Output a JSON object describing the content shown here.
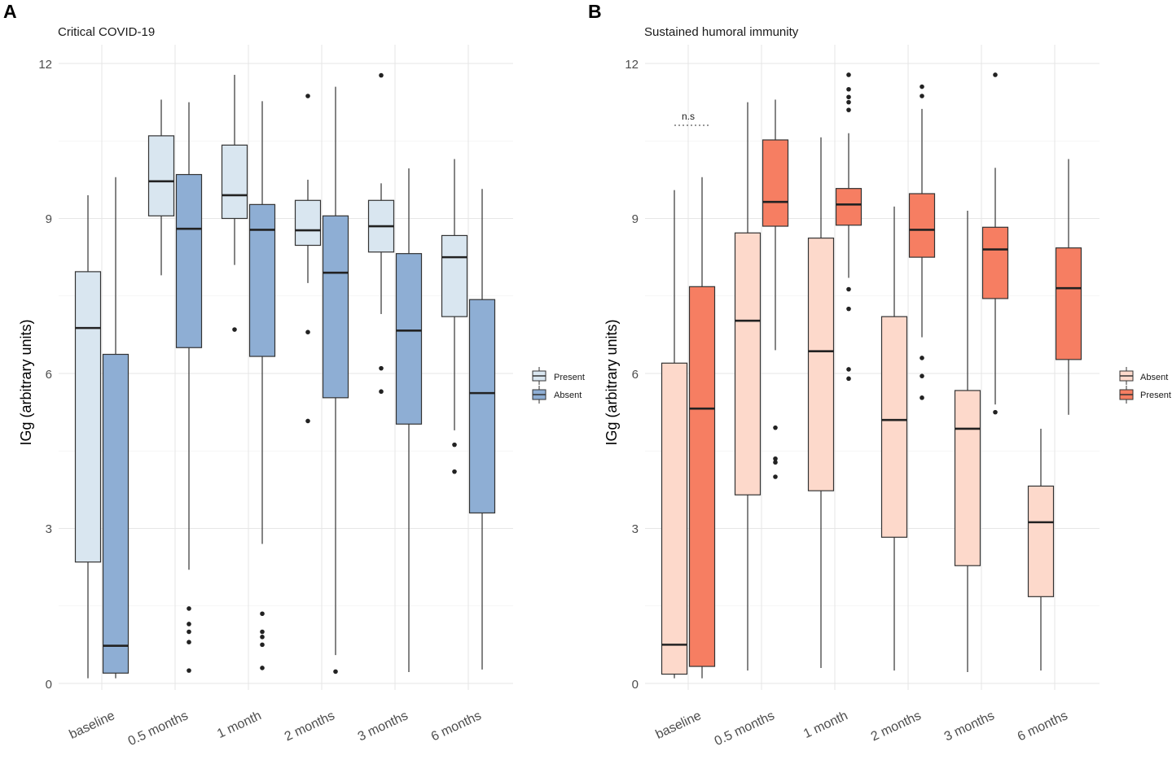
{
  "chart_data": [
    {
      "type": "boxplot",
      "panel_label": "A",
      "title": "Critical COVID-19",
      "xlabel": "",
      "ylabel": "IGg (arbitrary units)",
      "ylim": [
        0,
        12
      ],
      "yticks": [
        0,
        3,
        6,
        9,
        12
      ],
      "categories": [
        "baseline",
        "0.5 months",
        "1 month",
        "2 months",
        "3 months",
        "6 months"
      ],
      "legend": {
        "position": "right",
        "entries": [
          "Present",
          "Absent"
        ]
      },
      "series": [
        {
          "name": "Present",
          "color": "#d9e6f0",
          "boxes": [
            {
              "lower_whisker": 0.1,
              "q1": 2.35,
              "median": 6.88,
              "q3": 7.97,
              "upper_whisker": 9.45,
              "outliers": []
            },
            {
              "lower_whisker": 7.9,
              "q1": 9.05,
              "median": 9.72,
              "q3": 10.6,
              "upper_whisker": 11.3,
              "outliers": []
            },
            {
              "lower_whisker": 8.1,
              "q1": 9.0,
              "median": 9.45,
              "q3": 10.42,
              "upper_whisker": 11.78,
              "outliers": [
                6.85
              ]
            },
            {
              "lower_whisker": 7.75,
              "q1": 8.48,
              "median": 8.77,
              "q3": 9.35,
              "upper_whisker": 9.75,
              "outliers": [
                11.37,
                6.8,
                5.08
              ]
            },
            {
              "lower_whisker": 7.15,
              "q1": 8.35,
              "median": 8.85,
              "q3": 9.35,
              "upper_whisker": 9.68,
              "outliers": [
                11.77,
                6.1,
                5.65
              ]
            },
            {
              "lower_whisker": 4.9,
              "q1": 7.1,
              "median": 8.25,
              "q3": 8.67,
              "upper_whisker": 10.15,
              "outliers": [
                4.62,
                4.1
              ]
            }
          ]
        },
        {
          "name": "Absent",
          "color": "#8eaed4",
          "boxes": [
            {
              "lower_whisker": 0.1,
              "q1": 0.2,
              "median": 0.73,
              "q3": 6.37,
              "upper_whisker": 9.8,
              "outliers": []
            },
            {
              "lower_whisker": 2.2,
              "q1": 6.5,
              "median": 8.8,
              "q3": 9.85,
              "upper_whisker": 11.25,
              "outliers": [
                1.45,
                1.15,
                1.0,
                0.8,
                0.25
              ]
            },
            {
              "lower_whisker": 2.7,
              "q1": 6.33,
              "median": 8.78,
              "q3": 9.27,
              "upper_whisker": 11.27,
              "outliers": [
                1.35,
                1.0,
                0.9,
                0.75,
                0.3
              ]
            },
            {
              "lower_whisker": 0.55,
              "q1": 5.53,
              "median": 7.95,
              "q3": 9.05,
              "upper_whisker": 11.55,
              "outliers": [
                0.23
              ]
            },
            {
              "lower_whisker": 0.22,
              "q1": 5.02,
              "median": 6.83,
              "q3": 8.32,
              "upper_whisker": 9.97,
              "outliers": []
            },
            {
              "lower_whisker": 0.27,
              "q1": 3.3,
              "median": 5.62,
              "q3": 7.43,
              "upper_whisker": 9.57,
              "outliers": []
            }
          ]
        }
      ]
    },
    {
      "type": "boxplot",
      "panel_label": "B",
      "title": "Sustained humoral immunity",
      "xlabel": "",
      "ylabel": "IGg (arbitrary units)",
      "ylim": [
        0,
        12
      ],
      "yticks": [
        0,
        3,
        6,
        9,
        12
      ],
      "categories": [
        "baseline",
        "0.5 months",
        "1 month",
        "2 months",
        "3 months",
        "6 months"
      ],
      "legend": {
        "position": "right",
        "entries": [
          "Absent",
          "Present"
        ]
      },
      "annotations": [
        {
          "text": "n.s",
          "category": "baseline",
          "y": 10.8
        }
      ],
      "series": [
        {
          "name": "Absent",
          "color": "#fdd9cb",
          "boxes": [
            {
              "lower_whisker": 0.1,
              "q1": 0.18,
              "median": 0.75,
              "q3": 6.2,
              "upper_whisker": 9.55,
              "outliers": []
            },
            {
              "lower_whisker": 0.25,
              "q1": 3.65,
              "median": 7.02,
              "q3": 8.72,
              "upper_whisker": 11.25,
              "outliers": []
            },
            {
              "lower_whisker": 0.3,
              "q1": 3.73,
              "median": 6.43,
              "q3": 8.62,
              "upper_whisker": 10.57,
              "outliers": []
            },
            {
              "lower_whisker": 0.25,
              "q1": 2.83,
              "median": 5.1,
              "q3": 7.1,
              "upper_whisker": 9.23,
              "outliers": []
            },
            {
              "lower_whisker": 0.22,
              "q1": 2.28,
              "median": 4.93,
              "q3": 5.67,
              "upper_whisker": 9.15,
              "outliers": []
            },
            {
              "lower_whisker": 0.25,
              "q1": 1.68,
              "median": 3.12,
              "q3": 3.82,
              "upper_whisker": 4.93,
              "outliers": []
            }
          ]
        },
        {
          "name": "Present",
          "color": "#f67e62",
          "boxes": [
            {
              "lower_whisker": 0.1,
              "q1": 0.33,
              "median": 5.32,
              "q3": 7.68,
              "upper_whisker": 9.8,
              "outliers": []
            },
            {
              "lower_whisker": 6.45,
              "q1": 8.85,
              "median": 9.32,
              "q3": 10.52,
              "upper_whisker": 11.3,
              "outliers": [
                4.95,
                4.35,
                4.28,
                4.0
              ]
            },
            {
              "lower_whisker": 7.85,
              "q1": 8.87,
              "median": 9.27,
              "q3": 9.58,
              "upper_whisker": 10.65,
              "outliers": [
                11.78,
                11.5,
                11.35,
                11.25,
                11.1,
                7.63,
                7.25,
                6.08,
                5.9
              ]
            },
            {
              "lower_whisker": 6.7,
              "q1": 8.25,
              "median": 8.78,
              "q3": 9.48,
              "upper_whisker": 11.12,
              "outliers": [
                11.55,
                11.37,
                6.3,
                5.95,
                5.53
              ]
            },
            {
              "lower_whisker": 5.4,
              "q1": 7.45,
              "median": 8.4,
              "q3": 8.83,
              "upper_whisker": 9.98,
              "outliers": [
                11.78,
                5.25
              ]
            },
            {
              "lower_whisker": 5.2,
              "q1": 6.27,
              "median": 7.65,
              "q3": 8.43,
              "upper_whisker": 10.15,
              "outliers": []
            }
          ]
        }
      ]
    }
  ]
}
